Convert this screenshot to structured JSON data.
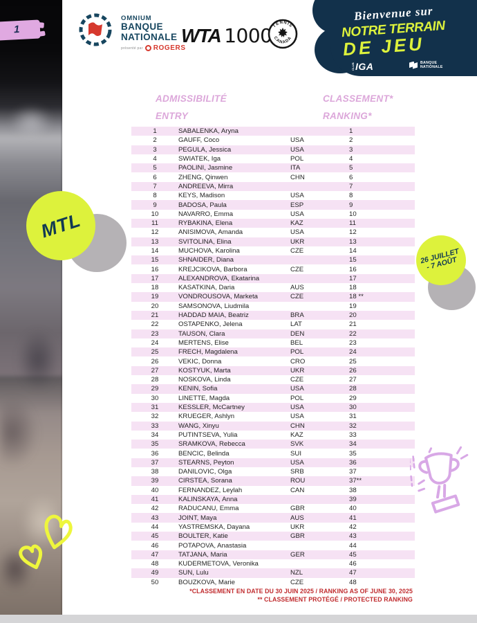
{
  "page_number": "1",
  "sponsors": {
    "onb": {
      "name_line1": "OMNIUM",
      "name_line2": "BANQUE",
      "name_line3": "NATIONALE",
      "presented_by": "présenté par",
      "presenter": "ROGERS"
    },
    "wta": {
      "brand": "WTA",
      "tier": "1000"
    },
    "tennis_canada": {
      "arc_top": "TENNIS",
      "arc_bottom": "CANADA"
    }
  },
  "banner": {
    "tagline_script": "Bienvenue sur",
    "tagline_line2": "NOTRE TERRAIN",
    "tagline_line3": "DE JEU",
    "iga_club": "CLUB",
    "iga": "IGA",
    "bank_line1": "BANQUE",
    "bank_line2": "NATIONALE"
  },
  "badges": {
    "city": "MTL",
    "dates_line1": "26 JUILLET",
    "dates_line2": "- 7 AOÛT"
  },
  "table": {
    "header": {
      "col_entry_fr": "ADMISSIBILITÉ",
      "col_entry_en": "ENTRY",
      "col_ranking_fr": "CLASSEMENT*",
      "col_ranking_en": "RANKING*"
    },
    "rows": [
      {
        "entry": "1",
        "name": "SABALENKA, Aryna",
        "country": "",
        "ranking": "1"
      },
      {
        "entry": "2",
        "name": "GAUFF, Coco",
        "country": "USA",
        "ranking": "2"
      },
      {
        "entry": "3",
        "name": "PEGULA, Jessica",
        "country": "USA",
        "ranking": "3"
      },
      {
        "entry": "4",
        "name": "SWIATEK, Iga",
        "country": "POL",
        "ranking": "4"
      },
      {
        "entry": "5",
        "name": "PAOLINI, Jasmine",
        "country": "ITA",
        "ranking": "5"
      },
      {
        "entry": "6",
        "name": "ZHENG, Qinwen",
        "country": "CHN",
        "ranking": "6"
      },
      {
        "entry": "7",
        "name": "ANDREEVA, Mirra",
        "country": "",
        "ranking": "7"
      },
      {
        "entry": "8",
        "name": "KEYS, Madison",
        "country": "USA",
        "ranking": "8"
      },
      {
        "entry": "9",
        "name": "BADOSA, Paula",
        "country": "ESP",
        "ranking": "9"
      },
      {
        "entry": "10",
        "name": "NAVARRO, Emma",
        "country": "USA",
        "ranking": "10"
      },
      {
        "entry": "11",
        "name": "RYBAKINA, Elena",
        "country": "KAZ",
        "ranking": "11"
      },
      {
        "entry": "12",
        "name": "ANISIMOVA, Amanda",
        "country": "USA",
        "ranking": "12"
      },
      {
        "entry": "13",
        "name": "SVITOLINA, Elina",
        "country": "UKR",
        "ranking": "13"
      },
      {
        "entry": "14",
        "name": "MUCHOVA, Karolina",
        "country": "CZE",
        "ranking": "14"
      },
      {
        "entry": "15",
        "name": "SHNAIDER, Diana",
        "country": "",
        "ranking": "15"
      },
      {
        "entry": "16",
        "name": "KREJCIKOVA, Barbora",
        "country": "CZE",
        "ranking": "16"
      },
      {
        "entry": "17",
        "name": "ALEXANDROVA, Ekatarina",
        "country": "",
        "ranking": "17"
      },
      {
        "entry": "18",
        "name": "KASATKINA, Daria",
        "country": "AUS",
        "ranking": "18"
      },
      {
        "entry": "19",
        "name": "VONDROUSOVA, Marketa",
        "country": "CZE",
        "ranking": "18 **"
      },
      {
        "entry": "20",
        "name": "SAMSONOVA, Liudmila",
        "country": "",
        "ranking": "19"
      },
      {
        "entry": "21",
        "name": "HADDAD MAIA, Beatriz",
        "country": "BRA",
        "ranking": "20"
      },
      {
        "entry": "22",
        "name": "OSTAPENKO, Jelena",
        "country": "LAT",
        "ranking": "21"
      },
      {
        "entry": "23",
        "name": "TAUSON, Clara",
        "country": "DEN",
        "ranking": "22"
      },
      {
        "entry": "24",
        "name": "MERTENS, Elise",
        "country": "BEL",
        "ranking": "23"
      },
      {
        "entry": "25",
        "name": "FRECH, Magdalena",
        "country": "POL",
        "ranking": "24"
      },
      {
        "entry": "26",
        "name": "VEKIC, Donna",
        "country": "CRO",
        "ranking": "25"
      },
      {
        "entry": "27",
        "name": "KOSTYUK, Marta",
        "country": "UKR",
        "ranking": "26"
      },
      {
        "entry": "28",
        "name": "NOSKOVA, Linda",
        "country": "CZE",
        "ranking": "27"
      },
      {
        "entry": "29",
        "name": "KENIN, Sofia",
        "country": "USA",
        "ranking": "28"
      },
      {
        "entry": "30",
        "name": "LINETTE, Magda",
        "country": "POL",
        "ranking": "29"
      },
      {
        "entry": "31",
        "name": "KESSLER, McCartney",
        "country": "USA",
        "ranking": "30"
      },
      {
        "entry": "32",
        "name": "KRUEGER, Ashlyn",
        "country": "USA",
        "ranking": "31"
      },
      {
        "entry": "33",
        "name": "WANG, Xinyu",
        "country": "CHN",
        "ranking": "32"
      },
      {
        "entry": "34",
        "name": "PUTINTSEVA, Yulia",
        "country": "KAZ",
        "ranking": "33"
      },
      {
        "entry": "35",
        "name": "SRAMKOVA, Rebecca",
        "country": "SVK",
        "ranking": "34"
      },
      {
        "entry": "36",
        "name": "BENCIC, Belinda",
        "country": "SUI",
        "ranking": "35"
      },
      {
        "entry": "37",
        "name": "STEARNS, Peyton",
        "country": "USA",
        "ranking": "36"
      },
      {
        "entry": "38",
        "name": "DANILOVIC, Olga",
        "country": "SRB",
        "ranking": "37"
      },
      {
        "entry": "39",
        "name": "CIRSTEA, Sorana",
        "country": "ROU",
        "ranking": "37**"
      },
      {
        "entry": "40",
        "name": "FERNANDEZ, Leylah",
        "country": "CAN",
        "ranking": "38"
      },
      {
        "entry": "41",
        "name": "KALINSKAYA, Anna",
        "country": "",
        "ranking": "39"
      },
      {
        "entry": "42",
        "name": "RADUCANU, Emma",
        "country": "GBR",
        "ranking": "40"
      },
      {
        "entry": "43",
        "name": "JOINT, Maya",
        "country": "AUS",
        "ranking": "41"
      },
      {
        "entry": "44",
        "name": "YASTREMSKA, Dayana",
        "country": "UKR",
        "ranking": "42"
      },
      {
        "entry": "45",
        "name": "BOULTER, Katie",
        "country": "GBR",
        "ranking": "43"
      },
      {
        "entry": "46",
        "name": "POTAPOVA, Anastasia",
        "country": "",
        "ranking": "44"
      },
      {
        "entry": "47",
        "name": "TATJANA, Maria",
        "country": "GER",
        "ranking": "45"
      },
      {
        "entry": "48",
        "name": "KUDERMETOVA, Veronika",
        "country": "",
        "ranking": "46"
      },
      {
        "entry": "49",
        "name": "SUN, Lulu",
        "country": "NZL",
        "ranking": "47"
      },
      {
        "entry": "50",
        "name": "BOUZKOVA, Marie",
        "country": "CZE",
        "ranking": "48"
      }
    ]
  },
  "footnotes": {
    "line1": "*CLASSEMENT EN DATE DU 30 JUIN 2025 / RANKING AS OF JUNE 30, 2025",
    "line2": "** CLASSEMENT PROTÉGÉ / PROTECTED RANKING"
  },
  "colors": {
    "neon": "#ddf23c",
    "navy": "#12314b",
    "row_pink": "#f6e2f4",
    "header_purple": "#dca7da",
    "footnote_red": "#c02b2e",
    "badge_pink": "#e0a9e1",
    "onb_navy": "#17465f",
    "rogers_red": "#d6392e"
  }
}
